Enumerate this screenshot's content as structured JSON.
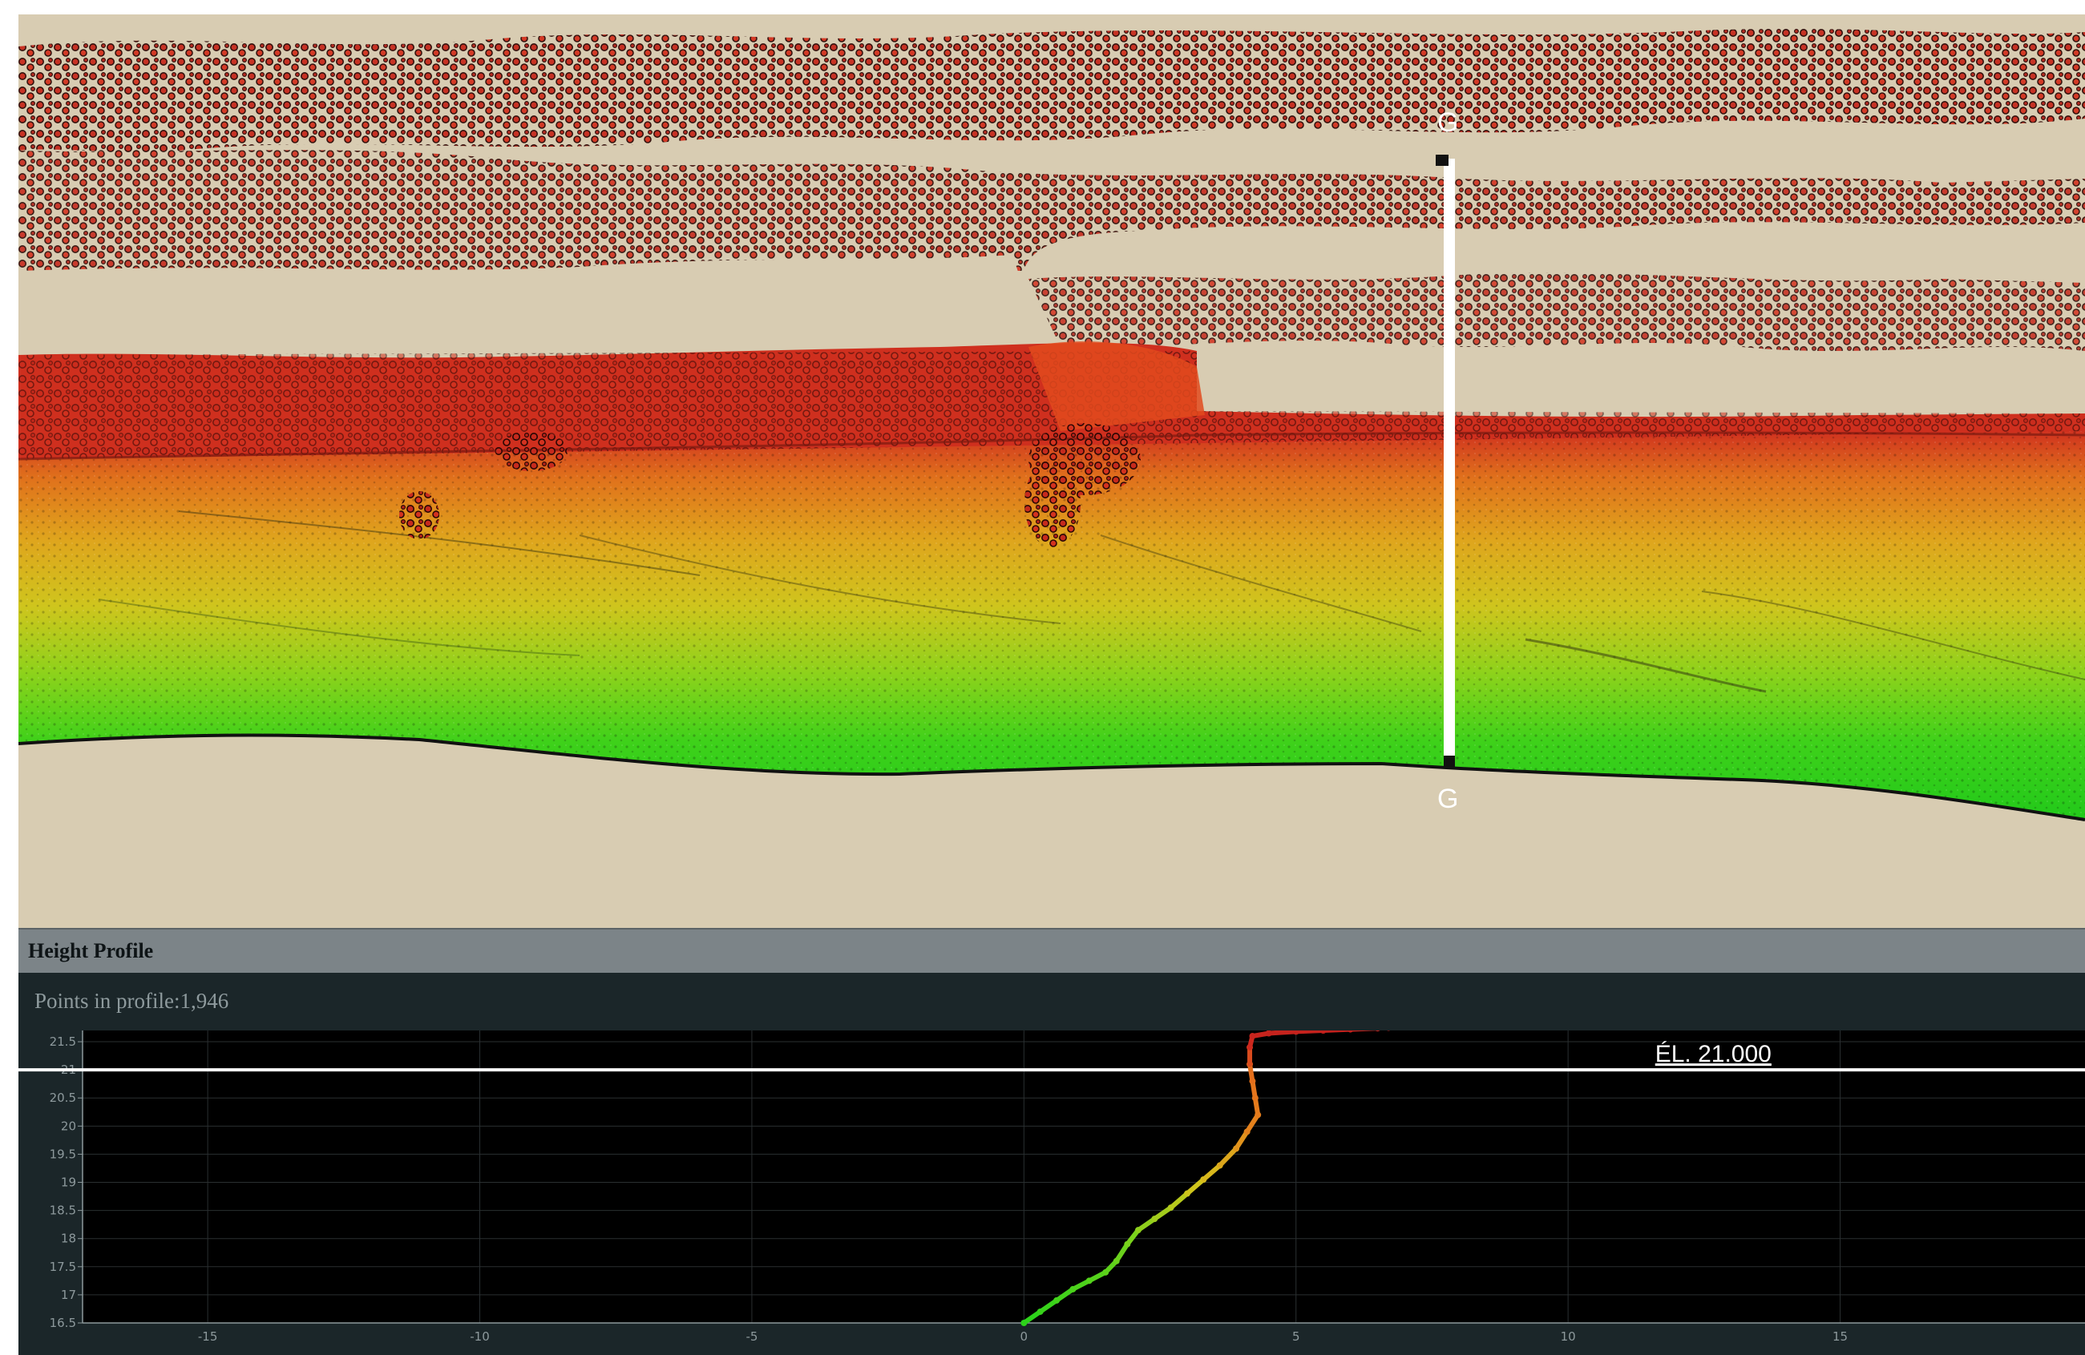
{
  "viewer": {
    "section_marker_top": "G",
    "section_marker_bottom": "G",
    "colors": {
      "background": "#d8ccb2",
      "point_red": "#c42a1e",
      "point_orange": "#e58a1c",
      "point_yellow": "#d9c51c",
      "point_green": "#2bd41a",
      "section_line": "#ffffff"
    }
  },
  "profile_panel": {
    "title": "Height Profile",
    "points_label": "Points in profile:",
    "points_value": "1,946"
  },
  "chart_data": {
    "type": "scatter",
    "x_ticks": [
      -15,
      -10,
      -5,
      0,
      5,
      10,
      15
    ],
    "y_ticks": [
      16.5,
      17,
      17.5,
      18,
      18.5,
      19,
      19.5,
      20,
      20.5,
      21,
      21.5
    ],
    "xlim": [
      -17.3,
      19.5
    ],
    "ylim": [
      16.5,
      21.7
    ],
    "grid": true,
    "reference_line": {
      "y": 21.0,
      "label": "ÉL. 21.000",
      "color": "#ffffff"
    },
    "series": [
      {
        "color_by": "elevation",
        "x": [
          0.0,
          0.3,
          0.6,
          0.9,
          1.2,
          1.5,
          1.7,
          1.9,
          2.1,
          2.4,
          2.7,
          3.0,
          3.3,
          3.6,
          3.9,
          4.1,
          4.3,
          4.25,
          4.2,
          4.15,
          4.15,
          4.2,
          4.5,
          5.0,
          5.5,
          6.0,
          6.5,
          6.7
        ],
        "y": [
          16.5,
          16.7,
          16.9,
          17.1,
          17.25,
          17.4,
          17.6,
          17.9,
          18.15,
          18.35,
          18.55,
          18.8,
          19.05,
          19.3,
          19.6,
          19.9,
          20.2,
          20.5,
          20.8,
          21.1,
          21.4,
          21.6,
          21.65,
          21.68,
          21.7,
          21.72,
          21.74,
          21.75
        ]
      }
    ]
  }
}
